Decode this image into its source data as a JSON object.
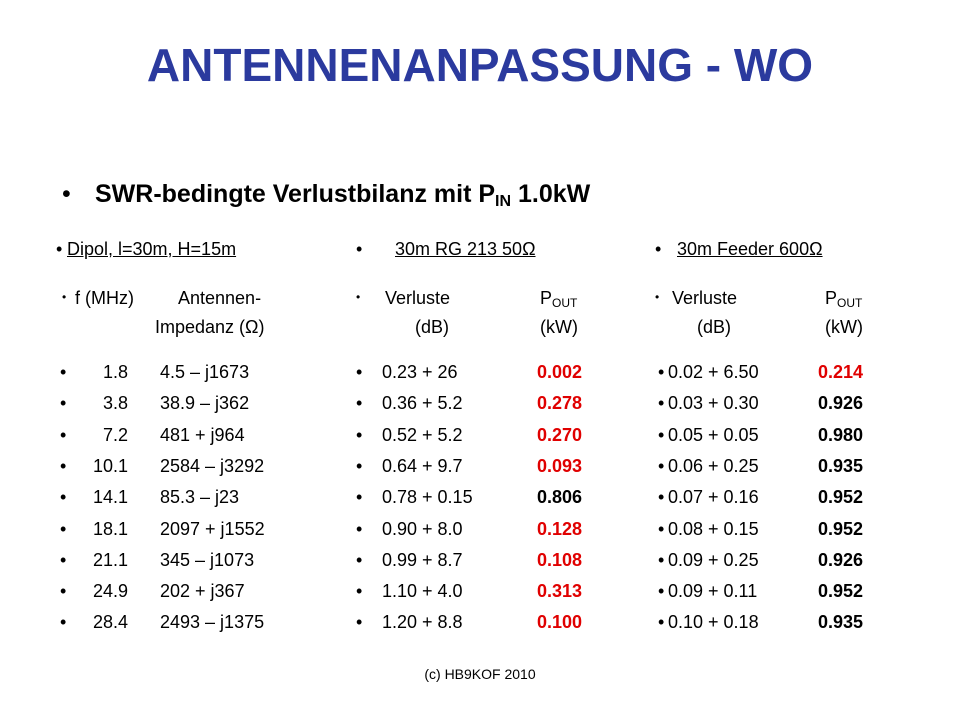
{
  "title": "ANTENNENANPASSUNG - WO",
  "subtitle": {
    "text": "SWR-bedingte Verlustbilanz mit P",
    "subscript": "IN",
    "suffix": "1.0kW"
  },
  "columns": [
    {
      "heading": "Dipol, l=30m, H=15m",
      "header": {
        "left": "f (MHz)",
        "right": "Antennen-",
        "right_line2": "Impedanz (Ω)"
      },
      "rows": [
        [
          "1.8",
          "4.5 – j1673"
        ],
        [
          "3.8",
          "38.9 – j362"
        ],
        [
          "7.2",
          "481 + j964"
        ],
        [
          "10.1",
          "2584 – j3292"
        ],
        [
          "14.1",
          "85.3 – j23"
        ],
        [
          "18.1",
          "2097 + j1552"
        ],
        [
          "21.1",
          "345 – j1073"
        ],
        [
          "24.9",
          "202 + j367"
        ],
        [
          "28.4",
          "2493 – j1375"
        ]
      ]
    },
    {
      "heading": "30m RG 213 50Ω",
      "header": {
        "left": "Verluste",
        "left_unit": "(dB)",
        "right": "P",
        "right_sub": "OUT",
        "right_unit": "(kW)"
      },
      "rows": [
        {
          "loss": "0.23 + 26",
          "pout": "0.002",
          "color": "#e00000"
        },
        {
          "loss": "0.36 + 5.2",
          "pout": "0.278",
          "color": "#e00000"
        },
        {
          "loss": "0.52 + 5.2",
          "pout": "0.270",
          "color": "#e00000"
        },
        {
          "loss": "0.64 + 9.7",
          "pout": "0.093",
          "color": "#e00000"
        },
        {
          "loss": "0.78 + 0.15",
          "pout": "0.806",
          "color": "#000000"
        },
        {
          "loss": "0.90 + 8.0",
          "pout": "0.128",
          "color": "#e00000"
        },
        {
          "loss": "0.99 + 8.7",
          "pout": "0.108",
          "color": "#e00000"
        },
        {
          "loss": "1.10 + 4.0",
          "pout": "0.313",
          "color": "#e00000"
        },
        {
          "loss": "1.20 + 8.8",
          "pout": "0.100",
          "color": "#e00000"
        }
      ]
    },
    {
      "heading": "30m Feeder 600Ω",
      "header": {
        "left": "Verluste",
        "left_unit": "(dB)",
        "right": "P",
        "right_sub": "OUT",
        "right_unit": "(kW)"
      },
      "rows": [
        {
          "loss": "0.02 + 6.50",
          "pout": "0.214",
          "color": "#e00000"
        },
        {
          "loss": "0.03 + 0.30",
          "pout": "0.926",
          "color": "#000000"
        },
        {
          "loss": "0.05 + 0.05",
          "pout": "0.980",
          "color": "#000000"
        },
        {
          "loss": "0.06 + 0.25",
          "pout": "0.935",
          "color": "#000000"
        },
        {
          "loss": "0.07 + 0.16",
          "pout": "0.952",
          "color": "#000000"
        },
        {
          "loss": "0.08 + 0.15",
          "pout": "0.952",
          "color": "#000000"
        },
        {
          "loss": "0.09 + 0.25",
          "pout": "0.926",
          "color": "#000000"
        },
        {
          "loss": "0.09 + 0.11",
          "pout": "0.952",
          "color": "#000000"
        },
        {
          "loss": "0.10 + 0.18",
          "pout": "0.935",
          "color": "#000000"
        }
      ]
    }
  ],
  "footer": "(c) HB9KOF 2010"
}
